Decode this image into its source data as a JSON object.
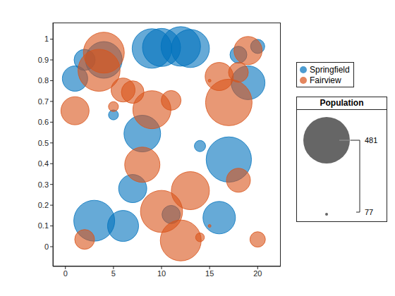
{
  "chart_data": {
    "type": "bubble",
    "xlim": [
      -1.3,
      22.4
    ],
    "ylim": [
      -0.095,
      1.08
    ],
    "xticks": [
      0,
      5,
      10,
      15,
      20
    ],
    "yticks": [
      0,
      0.1,
      0.2,
      0.3,
      0.4,
      0.5,
      0.6,
      0.7,
      0.8,
      0.9,
      1
    ],
    "grid": false,
    "legend": "right",
    "series": [
      {
        "name": "Springfield",
        "color": "#0072BD",
        "x": [
          1,
          2,
          4,
          5,
          8,
          9,
          10,
          12,
          13,
          7,
          3,
          6,
          11,
          14,
          16,
          17,
          18,
          19,
          20
        ],
        "y": [
          0.81,
          0.9,
          0.9,
          0.635,
          0.545,
          0.955,
          0.96,
          0.965,
          0.955,
          0.28,
          0.125,
          0.1,
          0.155,
          0.485,
          0.14,
          0.42,
          0.925,
          0.79,
          0.965
        ],
        "size": [
          196,
          159,
          327,
          94,
          327,
          368,
          347,
          368,
          347,
          224,
          389,
          256,
          138,
          99,
          273,
          460,
          129,
          290,
          113
        ]
      },
      {
        "name": "Fairview",
        "color": "#D95319",
        "x": [
          1,
          3.5,
          4,
          5,
          6,
          7,
          9,
          11,
          8,
          2,
          10,
          12,
          13,
          14,
          15,
          15,
          16,
          17,
          18,
          18,
          19,
          20
        ],
        "y": [
          0.655,
          0.85,
          0.935,
          0.675,
          0.755,
          0.745,
          0.66,
          0.705,
          0.395,
          0.035,
          0.17,
          0.03,
          0.27,
          0.045,
          0.1,
          0.8,
          0.82,
          0.695,
          0.32,
          0.84,
          0.945,
          0.035
        ],
        "size": [
          224,
          407,
          389,
          94,
          183,
          171,
          347,
          149,
          308,
          149,
          407,
          389,
          347,
          90,
          77,
          77,
          224,
          481,
          183,
          149,
          224,
          120
        ]
      }
    ],
    "size_legend": {
      "title": "Population",
      "values": [
        481,
        77
      ]
    }
  }
}
